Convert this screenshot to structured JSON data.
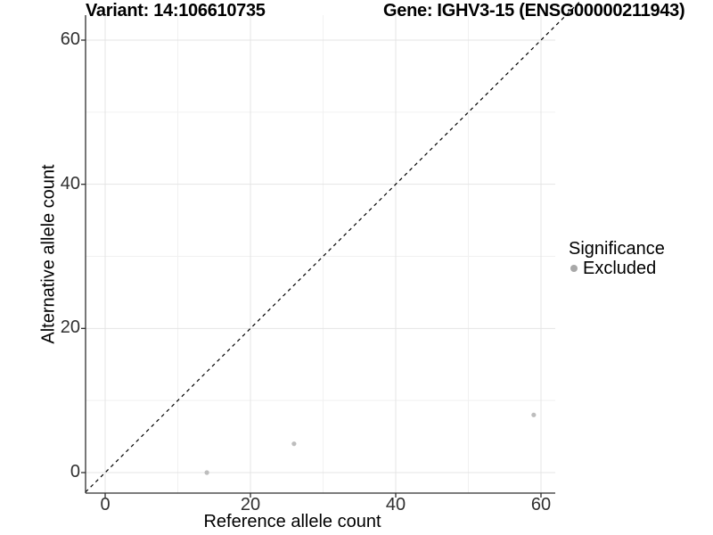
{
  "figure": {
    "title_left": "Variant: 14:106610735",
    "title_right": "Gene: IGHV3-15 (ENSG00000211943)"
  },
  "chart_data": {
    "type": "scatter",
    "title": "Variant: 14:106610735 — Gene: IGHV3-15 (ENSG00000211943)",
    "xlabel": "Reference allele count",
    "ylabel": "Alternative allele count",
    "xlim": [
      -3,
      63
    ],
    "ylim": [
      -3,
      63
    ],
    "x_ticks": [
      0,
      20,
      40,
      60
    ],
    "y_ticks": [
      0,
      20,
      40,
      60
    ],
    "x_minor_ticks": [
      10,
      30,
      50
    ],
    "y_minor_ticks": [
      10,
      30,
      50
    ],
    "grid": "major and minor, light gray on white",
    "series": [
      {
        "name": "Excluded",
        "color": "#BDBDBD",
        "points": [
          [
            14,
            0
          ],
          [
            26,
            4
          ],
          [
            59,
            8
          ]
        ]
      }
    ],
    "reference_line": {
      "kind": "identity",
      "slope": 1,
      "intercept": 0,
      "style": "dashed",
      "color": "#000000"
    },
    "legend": {
      "title": "Significance",
      "position": "right",
      "entries": [
        {
          "label": "Excluded",
          "color": "#A8A8A8"
        }
      ]
    }
  },
  "colors": {
    "background": "#FFFFFF",
    "grid_major": "#E4E4E4",
    "grid_minor": "#F1F1F1",
    "axis_line": "#2E2E2E",
    "tick_text": "#303030",
    "point": "#BDBDBD"
  }
}
